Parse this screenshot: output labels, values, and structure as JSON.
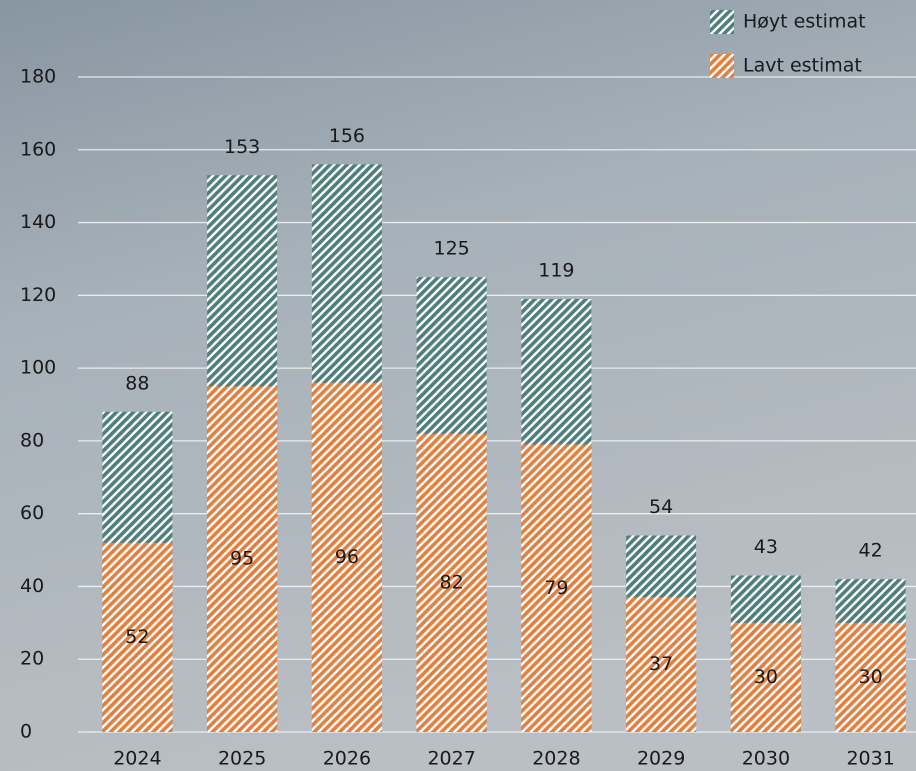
{
  "chart_data": {
    "type": "bar",
    "overlap": true,
    "categories": [
      "2024",
      "2025",
      "2026",
      "2027",
      "2028",
      "2029",
      "2030",
      "2031"
    ],
    "series": [
      {
        "name": "Høyt estimat",
        "color": "#4f7f7c",
        "values": [
          88,
          153,
          156,
          125,
          119,
          54,
          43,
          42
        ]
      },
      {
        "name": "Lavt estimat",
        "color": "#e4803f",
        "values": [
          52,
          95,
          96,
          82,
          79,
          37,
          30,
          30
        ]
      }
    ],
    "ylim": [
      0,
      180
    ],
    "yticks": [
      0,
      20,
      40,
      60,
      80,
      100,
      120,
      140,
      160,
      180
    ],
    "grid": true,
    "legend": "top-right"
  }
}
